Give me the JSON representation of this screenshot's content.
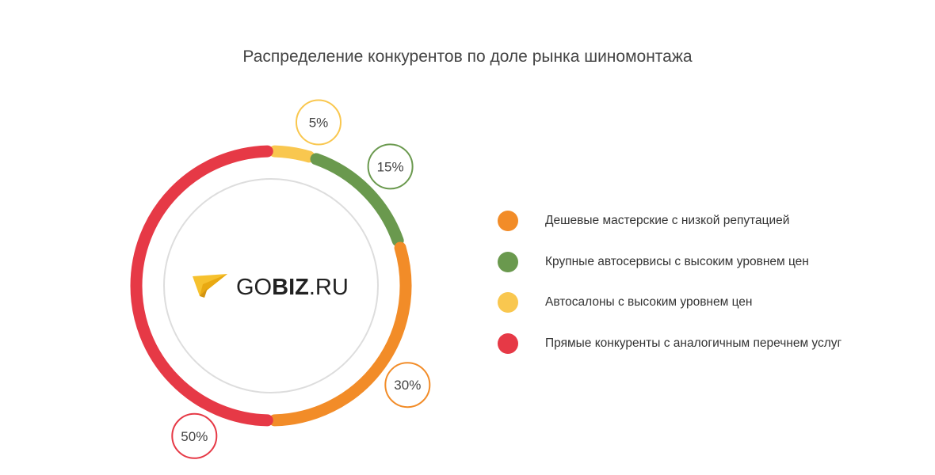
{
  "chart_data": {
    "type": "pie",
    "title": "Распределение конкурентов по доле рынка шиномонтажа",
    "center_logo": {
      "prefix": "GO",
      "bold": "BIZ",
      "suffix": ".RU"
    },
    "slices": [
      {
        "label": "Автосалоны с высоким уровнем цен",
        "value": 5,
        "value_label": "5%",
        "color": "#f9c74f"
      },
      {
        "label": "Крупные автосервисы с высоким уровнем цен",
        "value": 15,
        "value_label": "15%",
        "color": "#6a994e"
      },
      {
        "label": "Дешевые мастерские с низкой репутацией",
        "value": 30,
        "value_label": "30%",
        "color": "#f28c28"
      },
      {
        "label": "Прямые конкуренты с аналогичным перечнем услуг",
        "value": 50,
        "value_label": "50%",
        "color": "#e63946"
      }
    ],
    "legend": [
      {
        "label": "Дешевые мастерские с низкой репутацией",
        "color": "#f28c28"
      },
      {
        "label": "Крупные автосервисы с высоким уровнем цен",
        "color": "#6a994e"
      },
      {
        "label": "Автосалоны с высоким уровнем цен",
        "color": "#f9c74f"
      },
      {
        "label": "Прямые конкуренты с аналогичным перечнем услуг",
        "color": "#e63946"
      }
    ],
    "legend_position": "right"
  }
}
